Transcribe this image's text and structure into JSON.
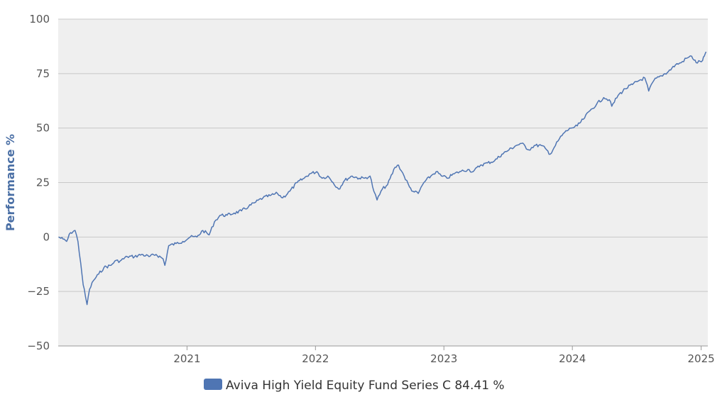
{
  "chart_data": {
    "type": "line",
    "ylabel": "Performance %",
    "xlabel": "",
    "ylim": [
      -50,
      100
    ],
    "yticks": [
      -50,
      -25,
      0,
      25,
      50,
      75,
      100
    ],
    "ytick_labels": [
      "−50",
      "−25",
      "0",
      "25",
      "50",
      "75",
      "100"
    ],
    "xlim": [
      "2020-01-01",
      "2025-01-20"
    ],
    "xticks": [
      "2021-01-01",
      "2022-01-01",
      "2023-01-01",
      "2024-01-01",
      "2025-01-01"
    ],
    "xtick_labels": [
      "2021",
      "2022",
      "2023",
      "2024",
      "2025"
    ],
    "grid": true,
    "legend": {
      "placement": "bottom-center",
      "entries": [
        {
          "label": "Aviva High Yield Equity Fund Series C 84.41 %",
          "color": "#4f75b3"
        }
      ]
    },
    "series": [
      {
        "color": "#4f75b3",
        "points": [
          [
            "2020-01-02",
            0
          ],
          [
            "2020-01-15",
            -1
          ],
          [
            "2020-01-25",
            -2
          ],
          [
            "2020-02-05",
            2
          ],
          [
            "2020-02-18",
            3
          ],
          [
            "2020-02-26",
            -2
          ],
          [
            "2020-03-05",
            -12
          ],
          [
            "2020-03-12",
            -22
          ],
          [
            "2020-03-18",
            -27
          ],
          [
            "2020-03-23",
            -31
          ],
          [
            "2020-03-30",
            -24
          ],
          [
            "2020-04-10",
            -20
          ],
          [
            "2020-04-25",
            -17
          ],
          [
            "2020-05-10",
            -14
          ],
          [
            "2020-05-30",
            -13
          ],
          [
            "2020-06-10",
            -11
          ],
          [
            "2020-06-25",
            -11
          ],
          [
            "2020-07-15",
            -9
          ],
          [
            "2020-08-05",
            -9
          ],
          [
            "2020-08-25",
            -8
          ],
          [
            "2020-09-15",
            -9
          ],
          [
            "2020-10-05",
            -8
          ],
          [
            "2020-10-25",
            -10
          ],
          [
            "2020-10-30",
            -13
          ],
          [
            "2020-11-10",
            -4
          ],
          [
            "2020-12-01",
            -3
          ],
          [
            "2020-12-20",
            -2
          ],
          [
            "2021-01-10",
            0
          ],
          [
            "2021-01-29",
            0
          ],
          [
            "2021-02-15",
            3
          ],
          [
            "2021-03-05",
            1
          ],
          [
            "2021-03-20",
            7
          ],
          [
            "2021-04-05",
            10
          ],
          [
            "2021-04-25",
            10
          ],
          [
            "2021-05-15",
            11
          ],
          [
            "2021-06-05",
            12
          ],
          [
            "2021-06-25",
            14
          ],
          [
            "2021-07-15",
            16
          ],
          [
            "2021-08-05",
            18
          ],
          [
            "2021-08-25",
            19
          ],
          [
            "2021-09-15",
            20
          ],
          [
            "2021-09-30",
            18
          ],
          [
            "2021-10-20",
            21
          ],
          [
            "2021-11-10",
            25
          ],
          [
            "2021-11-30",
            27
          ],
          [
            "2021-12-15",
            29
          ],
          [
            "2022-01-05",
            30
          ],
          [
            "2022-01-20",
            27
          ],
          [
            "2022-02-05",
            28
          ],
          [
            "2022-02-20",
            25
          ],
          [
            "2022-03-08",
            22
          ],
          [
            "2022-03-25",
            26
          ],
          [
            "2022-04-15",
            28
          ],
          [
            "2022-05-05",
            27
          ],
          [
            "2022-05-20",
            27
          ],
          [
            "2022-06-05",
            28
          ],
          [
            "2022-06-16",
            21
          ],
          [
            "2022-06-25",
            17
          ],
          [
            "2022-07-10",
            22
          ],
          [
            "2022-07-25",
            24
          ],
          [
            "2022-08-15",
            32
          ],
          [
            "2022-08-25",
            33
          ],
          [
            "2022-09-10",
            28
          ],
          [
            "2022-09-25",
            23
          ],
          [
            "2022-10-05",
            21
          ],
          [
            "2022-10-20",
            20
          ],
          [
            "2022-11-05",
            25
          ],
          [
            "2022-11-25",
            28
          ],
          [
            "2022-12-10",
            30
          ],
          [
            "2022-12-25",
            28
          ],
          [
            "2023-01-10",
            27
          ],
          [
            "2023-01-30",
            29
          ],
          [
            "2023-02-15",
            30
          ],
          [
            "2023-03-10",
            31
          ],
          [
            "2023-03-25",
            30
          ],
          [
            "2023-04-15",
            33
          ],
          [
            "2023-05-05",
            34
          ],
          [
            "2023-05-25",
            35
          ],
          [
            "2023-06-15",
            38
          ],
          [
            "2023-07-05",
            40
          ],
          [
            "2023-07-25",
            42
          ],
          [
            "2023-08-10",
            43
          ],
          [
            "2023-08-30",
            40
          ],
          [
            "2023-09-15",
            42
          ],
          [
            "2023-10-05",
            42
          ],
          [
            "2023-10-20",
            40
          ],
          [
            "2023-10-30",
            38
          ],
          [
            "2023-11-10",
            41
          ],
          [
            "2023-11-25",
            45
          ],
          [
            "2023-12-10",
            48
          ],
          [
            "2023-12-28",
            50
          ],
          [
            "2024-01-15",
            51
          ],
          [
            "2024-02-01",
            54
          ],
          [
            "2024-02-20",
            58
          ],
          [
            "2024-03-10",
            61
          ],
          [
            "2024-03-30",
            64
          ],
          [
            "2024-04-15",
            63
          ],
          [
            "2024-04-22",
            60
          ],
          [
            "2024-05-10",
            65
          ],
          [
            "2024-05-30",
            68
          ],
          [
            "2024-06-20",
            70
          ],
          [
            "2024-07-10",
            72
          ],
          [
            "2024-07-25",
            73
          ],
          [
            "2024-08-05",
            67
          ],
          [
            "2024-08-20",
            72
          ],
          [
            "2024-09-10",
            74
          ],
          [
            "2024-09-30",
            76
          ],
          [
            "2024-10-20",
            79
          ],
          [
            "2024-11-05",
            80
          ],
          [
            "2024-11-20",
            82
          ],
          [
            "2024-12-05",
            83
          ],
          [
            "2024-12-18",
            80
          ],
          [
            "2025-01-05",
            81
          ],
          [
            "2025-01-10",
            83
          ],
          [
            "2025-01-15",
            85
          ]
        ]
      }
    ]
  }
}
